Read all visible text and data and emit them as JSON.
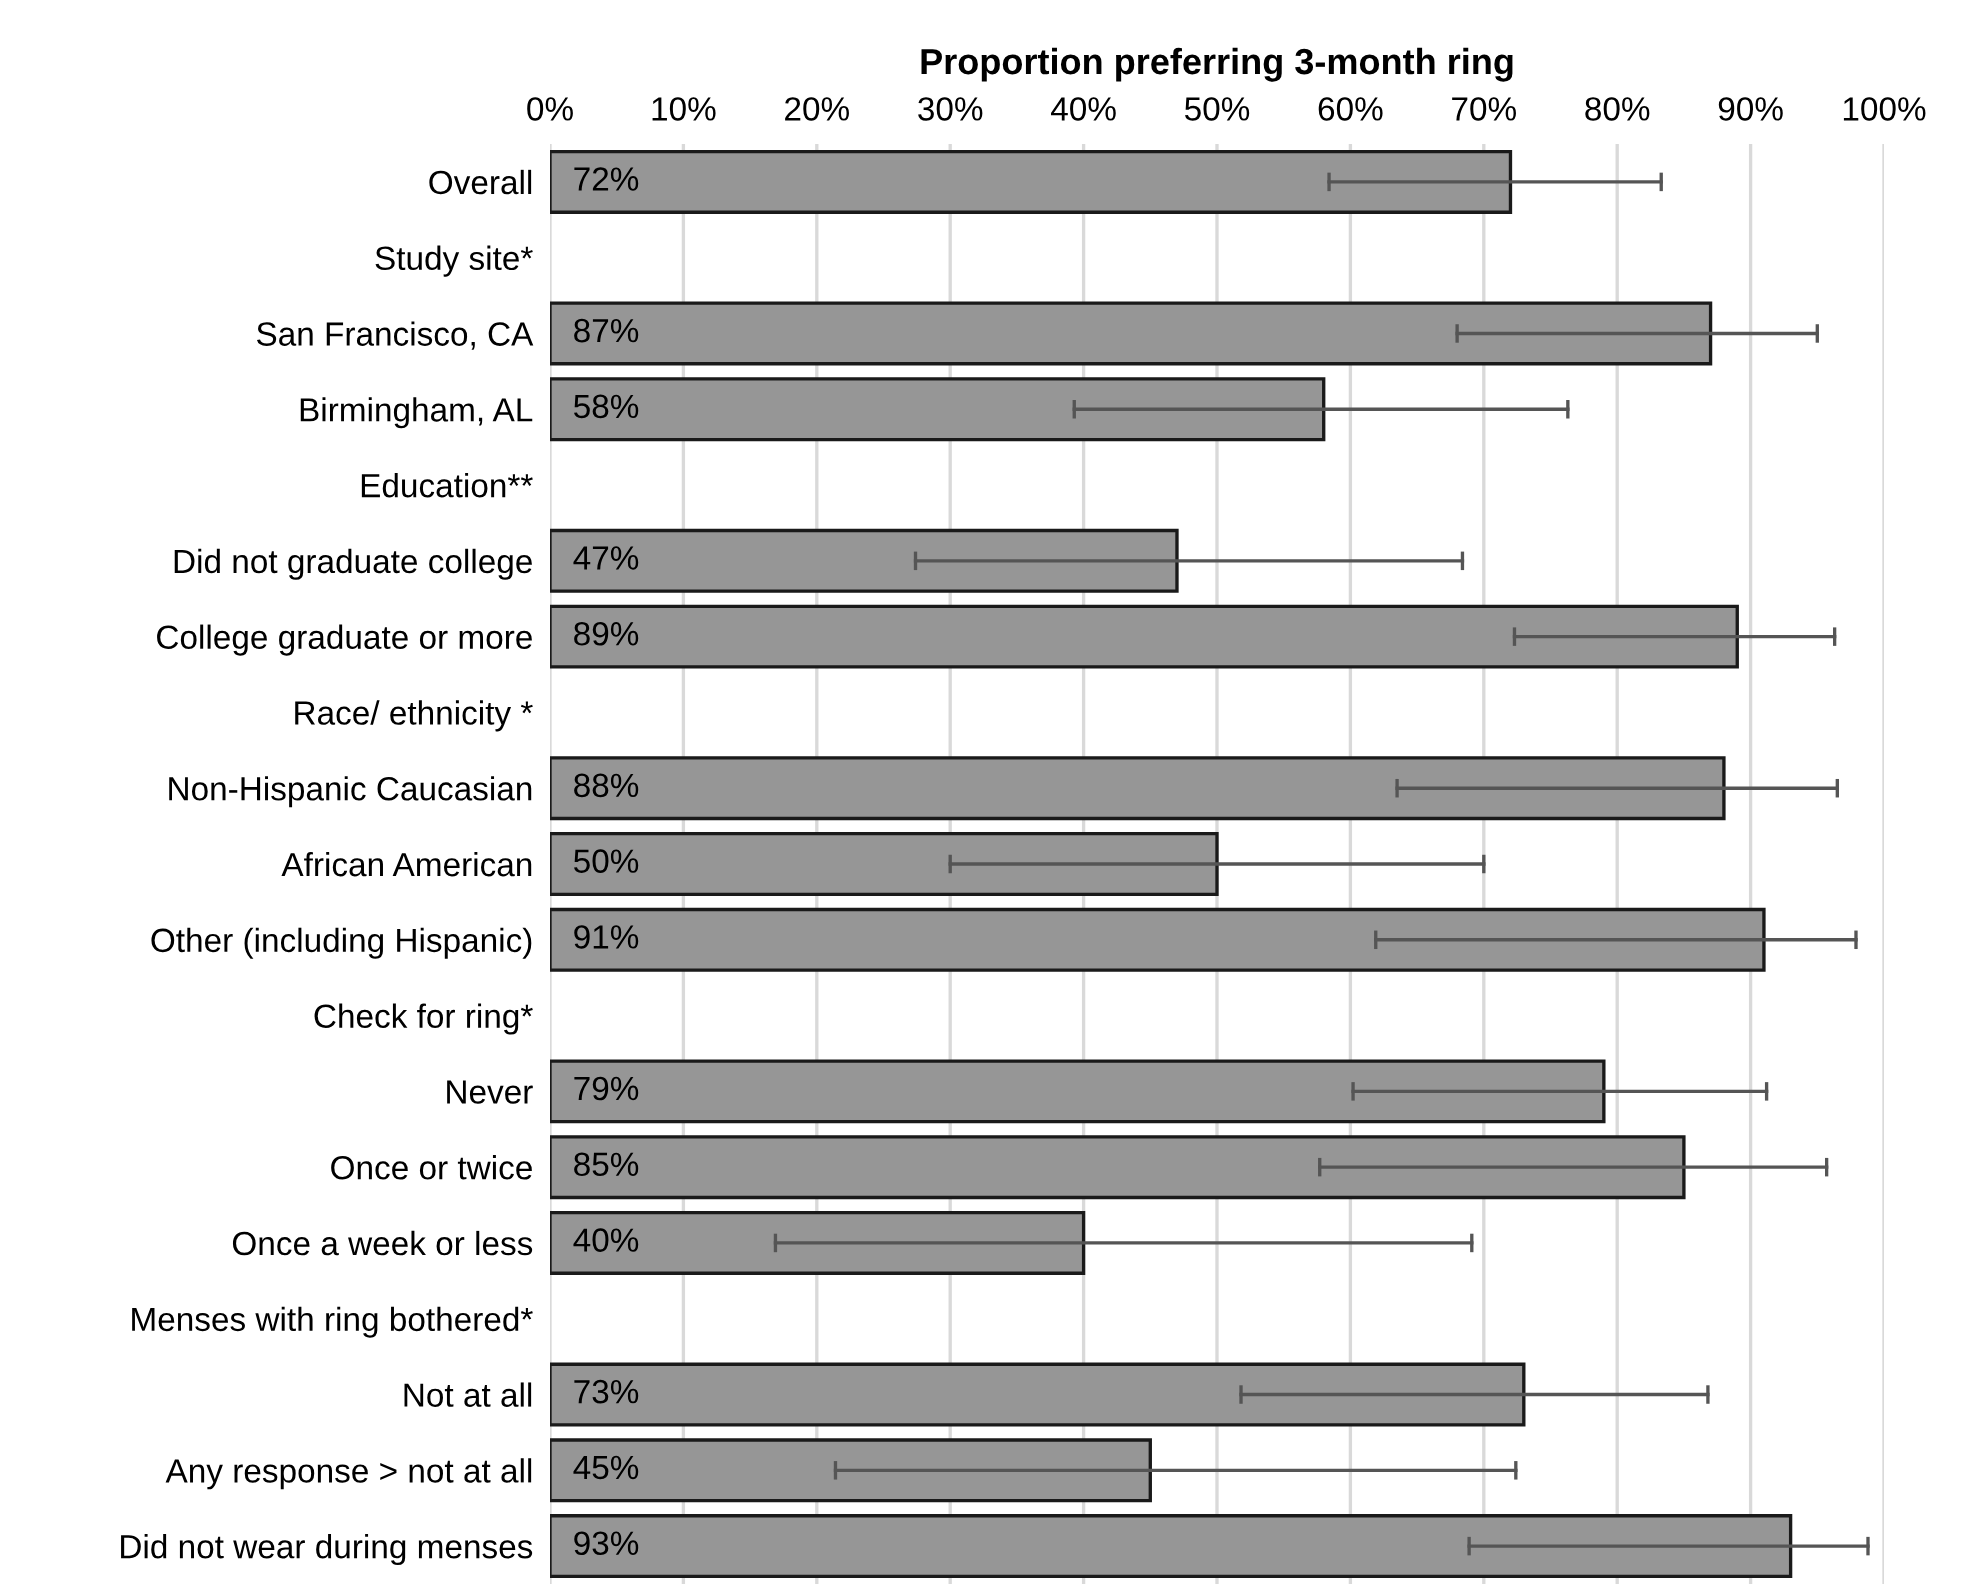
{
  "chart_data": {
    "type": "bar",
    "orientation": "horizontal",
    "xlabel": "Proportion preferring 3-month ring",
    "categories": [
      "Overall",
      "Study site*",
      "San Francisco, CA",
      "Birmingham, AL",
      "Education**",
      "Did not graduate college",
      "College graduate or more",
      "Race/ ethnicity *",
      "Non-Hispanic Caucasian",
      "African American",
      "Other (including Hispanic)",
      "Check for ring*",
      "Never",
      "Once or twice",
      "Once a week or less",
      "Menses with ring bothered*",
      "Not at all",
      "Any response > not at all",
      "Did not wear during menses"
    ],
    "values": [
      72,
      null,
      87,
      58,
      null,
      47,
      89,
      null,
      88,
      50,
      91,
      null,
      79,
      85,
      40,
      null,
      73,
      45,
      93
    ],
    "errors": [
      [
        58.4,
        83.3
      ],
      null,
      [
        68.0,
        95.0
      ],
      [
        39.3,
        76.3
      ],
      null,
      [
        27.4,
        68.4
      ],
      [
        72.3,
        96.3
      ],
      null,
      [
        63.5,
        96.5
      ],
      [
        30.0,
        70.0
      ],
      [
        61.9,
        97.9
      ],
      null,
      [
        60.2,
        91.2
      ],
      [
        57.7,
        95.7
      ],
      [
        16.9,
        69.1
      ],
      null,
      [
        51.8,
        86.8
      ],
      [
        21.4,
        72.4
      ],
      [
        68.9,
        98.8
      ]
    ],
    "value_labels": [
      "72%",
      null,
      "87%",
      "58%",
      null,
      "47%",
      "89%",
      null,
      "88%",
      "50%",
      "91%",
      null,
      "79%",
      "85%",
      "40%",
      null,
      "73%",
      "45%",
      "93%"
    ],
    "color": "#969696",
    "xlim": [
      0,
      100
    ],
    "xticks": [
      {
        "value": 0,
        "label": "0%"
      },
      {
        "value": 10,
        "label": "10%"
      },
      {
        "value": 20,
        "label": "20%"
      },
      {
        "value": 30,
        "label": "30%"
      },
      {
        "value": 40,
        "label": "40%"
      },
      {
        "value": 50,
        "label": "50%"
      },
      {
        "value": 60,
        "label": "60%"
      },
      {
        "value": 70,
        "label": "70%"
      },
      {
        "value": 80,
        "label": "80%"
      },
      {
        "value": 90,
        "label": "90%"
      },
      {
        "value": 100,
        "label": "100%"
      }
    ],
    "grid": "x"
  }
}
